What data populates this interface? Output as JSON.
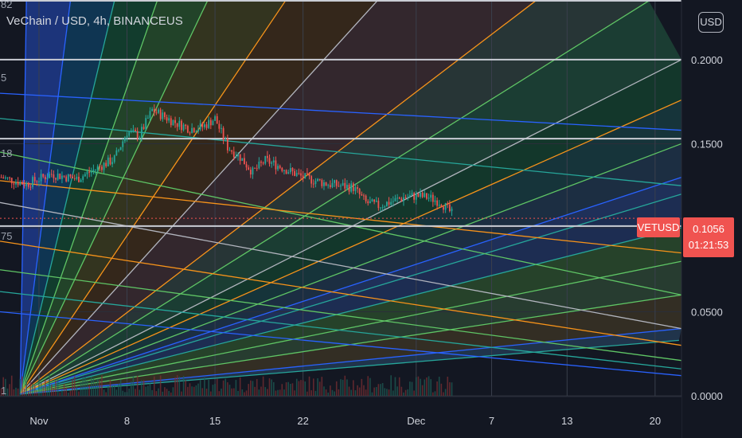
{
  "header": {
    "title": "VeChain / USD, 4h, BINANCEUS",
    "currency_button": "USD"
  },
  "price_tag": {
    "symbol": "VETUSD",
    "price": "0.1056",
    "countdown": "01:21:53"
  },
  "fan_labels": [
    "82",
    "5",
    "18",
    "75",
    "1"
  ],
  "colors": {
    "background": "#131722",
    "price_red": "#f05350",
    "candle_up": "#26a69a",
    "candle_down": "#ef5350",
    "fan_orange": "#f7931a",
    "fan_green": "#5fc565",
    "fan_teal": "#26a69a",
    "fan_blue": "#2962ff",
    "fan_gray": "#b2b5be"
  },
  "chart_data": {
    "type": "candlestick",
    "symbol": "VeChain / USD",
    "interval": "4h",
    "exchange": "BINANCEUS",
    "ylim": [
      0.0,
      0.2355
    ],
    "y_ticks": [
      "0.2000",
      "0.1500",
      "0.1000",
      "0.0500",
      "0.0000"
    ],
    "y_tick_values": [
      0.2,
      0.15,
      0.1,
      0.05,
      0.0
    ],
    "x_ticks": [
      "Nov",
      "8",
      "15",
      "22",
      "Dec",
      "7",
      "13",
      "20"
    ],
    "x_tick_days": [
      1,
      8,
      15,
      22,
      31,
      37,
      43,
      50
    ],
    "x_day_range": [
      -2.1,
      52.1
    ],
    "last_price": 0.1056,
    "price_path": [
      [
        -2.0,
        0.13
      ],
      [
        0.0,
        0.126
      ],
      [
        2.0,
        0.132
      ],
      [
        4.0,
        0.129
      ],
      [
        6.0,
        0.137
      ],
      [
        7.0,
        0.141
      ],
      [
        8.0,
        0.157
      ],
      [
        9.0,
        0.155
      ],
      [
        10.0,
        0.17
      ],
      [
        11.0,
        0.166
      ],
      [
        12.0,
        0.162
      ],
      [
        13.0,
        0.159
      ],
      [
        14.0,
        0.16
      ],
      [
        15.0,
        0.165
      ],
      [
        16.0,
        0.148
      ],
      [
        17.0,
        0.142
      ],
      [
        18.0,
        0.133
      ],
      [
        19.0,
        0.14
      ],
      [
        20.0,
        0.137
      ],
      [
        22.0,
        0.13
      ],
      [
        24.0,
        0.126
      ],
      [
        26.0,
        0.124
      ],
      [
        27.0,
        0.115
      ],
      [
        28.0,
        0.113
      ],
      [
        30.0,
        0.118
      ],
      [
        31.0,
        0.119
      ],
      [
        32.0,
        0.118
      ],
      [
        33.0,
        0.115
      ],
      [
        34.0,
        0.107
      ]
    ],
    "gann_fan": {
      "anchor": [
        -0.5,
        0.001
      ],
      "rays_up": [
        [
          0.0,
          0.235
        ],
        [
          3.5,
          0.235
        ],
        [
          7.0,
          0.235
        ],
        [
          10.4,
          0.235
        ],
        [
          14.4,
          0.235
        ],
        [
          20.6,
          0.235
        ],
        [
          27.9,
          0.235
        ],
        [
          40.5,
          0.235
        ],
        [
          49.5,
          0.235
        ],
        [
          52.1,
          0.2
        ],
        [
          52.1,
          0.176
        ],
        [
          52.1,
          0.15
        ],
        [
          52.1,
          0.12
        ]
      ],
      "rays_down": [
        [
          51.9,
          0.033
        ],
        [
          52.1,
          0.04
        ],
        [
          52.1,
          0.06
        ],
        [
          52.1,
          0.08
        ],
        [
          52.1,
          0.1
        ],
        [
          52.1,
          0.13
        ]
      ],
      "rays_flat": [
        [
          52.1,
          0.012
        ],
        [
          52.1,
          0.017
        ],
        [
          52.1,
          0.021
        ],
        [
          52.1,
          0.026
        ],
        [
          52.1,
          0.031
        ],
        [
          52.1,
          0.043
        ]
      ]
    },
    "fan_levels": [
      0.235,
      0.2,
      0.153,
      0.101
    ],
    "grid": true,
    "legend": "none"
  }
}
